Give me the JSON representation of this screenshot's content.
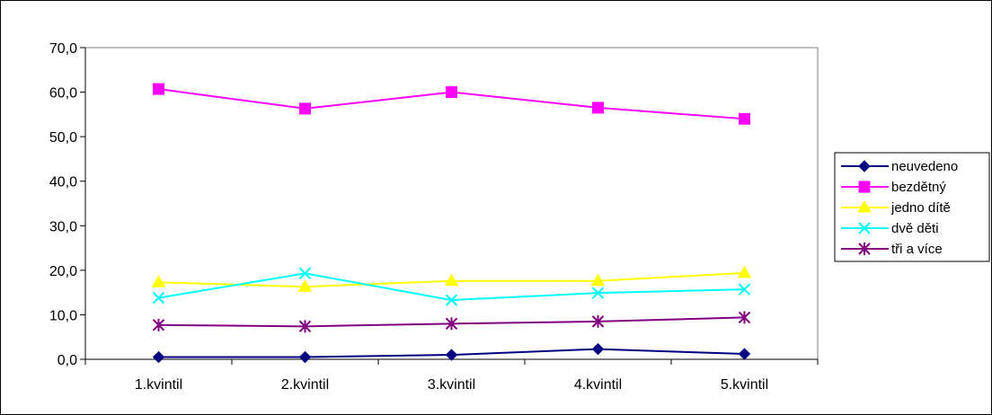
{
  "chart_data": {
    "type": "line",
    "title": "",
    "xlabel": "",
    "ylabel": "",
    "categories": [
      "1.kvintil",
      "2.kvintil",
      "3.kvintil",
      "4.kvintil",
      "5.kvintil"
    ],
    "ylim": [
      0,
      70
    ],
    "yticks": [
      "0,0",
      "10,0",
      "20,0",
      "30,0",
      "40,0",
      "50,0",
      "60,0",
      "70,0"
    ],
    "grid": false,
    "legend_position": "right",
    "series": [
      {
        "name": "neuvedeno",
        "color": "#000080",
        "marker": "diamond",
        "values": [
          0.5,
          0.5,
          1.0,
          2.3,
          1.2
        ]
      },
      {
        "name": "bezdětný",
        "color": "#ff00ff",
        "marker": "square",
        "values": [
          60.7,
          56.3,
          60.0,
          56.5,
          54.0
        ]
      },
      {
        "name": "jedno dítě",
        "color": "#ffff00",
        "marker": "triangle",
        "values": [
          17.3,
          16.3,
          17.6,
          17.6,
          19.4
        ]
      },
      {
        "name": "dvě děti",
        "color": "#00ffff",
        "marker": "x",
        "values": [
          13.8,
          19.3,
          13.3,
          14.9,
          15.7
        ]
      },
      {
        "name": "tři a více",
        "color": "#800080",
        "marker": "asterisk",
        "values": [
          7.7,
          7.4,
          8.0,
          8.5,
          9.4
        ]
      }
    ]
  }
}
